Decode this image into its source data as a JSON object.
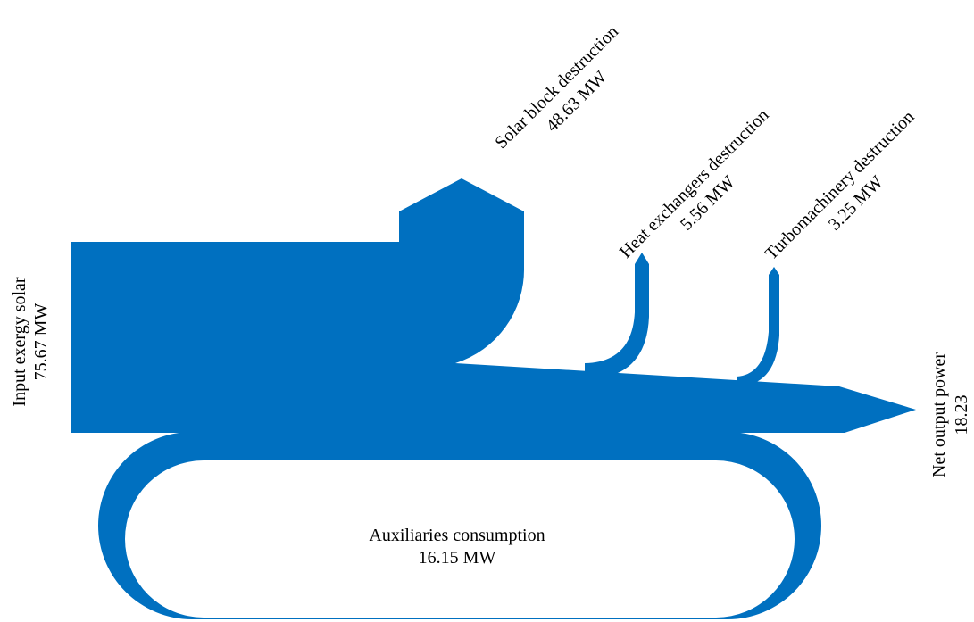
{
  "chart_data": {
    "type": "sankey",
    "unit": "MW",
    "color": "#0070c0",
    "source": {
      "name": "Input exergy solar",
      "value": 75.67,
      "value_label": "75.67 MW"
    },
    "flows": [
      {
        "name": "Solar block destruction",
        "value": 48.63,
        "value_label": "48.63 MW"
      },
      {
        "name": "Heat exchangers destruction",
        "value": 5.56,
        "value_label": "5.56 MW"
      },
      {
        "name": "Turbomachinery destruction",
        "value": 3.25,
        "value_label": "3.25 MW"
      },
      {
        "name": "Net output power",
        "value": 18.23,
        "value_label": "18.23"
      },
      {
        "name": "Auxiliaries consumption",
        "value": 16.15,
        "value_label": "16.15 MW",
        "recirculated": true
      }
    ]
  }
}
